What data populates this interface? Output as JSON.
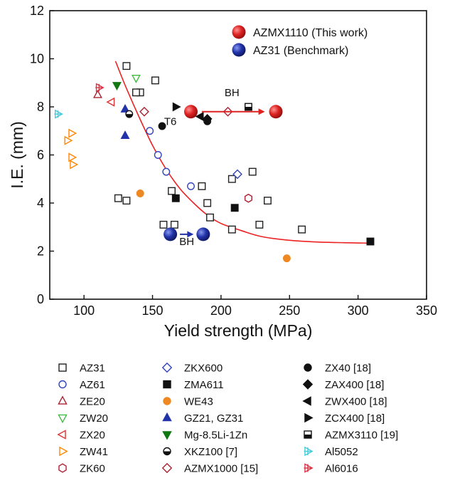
{
  "chart_data": {
    "type": "scatter",
    "xlabel": "Yield strength (MPa)",
    "ylabel": "I.E. (mm)",
    "xlim": [
      75,
      350
    ],
    "ylim": [
      0,
      12
    ],
    "xticks": [
      100,
      150,
      200,
      250,
      300,
      350
    ],
    "yticks": [
      0,
      2,
      4,
      6,
      8,
      10,
      12
    ],
    "grid": false,
    "series": [
      {
        "name": "AZ31",
        "marker": "square-open",
        "color": "#222222",
        "points": [
          [
            131,
            9.7
          ],
          [
            141,
            8.6
          ],
          [
            138,
            8.6
          ],
          [
            125,
            4.2
          ],
          [
            131,
            4.1
          ],
          [
            152,
            9.1
          ],
          [
            158,
            3.1
          ],
          [
            166,
            3.1
          ],
          [
            164,
            4.5
          ],
          [
            186,
            4.7
          ],
          [
            190,
            4.0
          ],
          [
            192,
            3.4
          ],
          [
            208,
            2.9
          ],
          [
            208,
            5.0
          ],
          [
            223,
            5.3
          ],
          [
            228,
            3.1
          ],
          [
            234,
            4.1
          ],
          [
            259,
            2.9
          ]
        ]
      },
      {
        "name": "AZ61",
        "marker": "circle-open",
        "color": "#3344bb",
        "points": [
          [
            148,
            7.0
          ],
          [
            154,
            6.0
          ],
          [
            160,
            5.3
          ],
          [
            178,
            4.7
          ]
        ]
      },
      {
        "name": "ZE20",
        "marker": "triangle-up-open",
        "color": "#aa2233",
        "points": [
          [
            110,
            8.5
          ]
        ]
      },
      {
        "name": "ZW20",
        "marker": "triangle-down-open",
        "color": "#44bb44",
        "points": [
          [
            138,
            9.2
          ]
        ]
      },
      {
        "name": "ZX20",
        "marker": "triangle-left-open",
        "color": "#dd3333",
        "points": [
          [
            120,
            8.2
          ]
        ]
      },
      {
        "name": "ZW41",
        "marker": "triangle-right-open",
        "color": "#ff8800",
        "points": [
          [
            91,
            6.9
          ],
          [
            88,
            6.6
          ],
          [
            91,
            5.9
          ],
          [
            92,
            5.6
          ]
        ]
      },
      {
        "name": "ZK60",
        "marker": "hexagon-open",
        "color": "#aa2233",
        "points": [
          [
            220,
            4.2
          ]
        ]
      },
      {
        "name": "ZKX600",
        "marker": "diamond-open",
        "color": "#3344bb",
        "points": [
          [
            212,
            5.2
          ]
        ]
      },
      {
        "name": "ZMA611",
        "marker": "square-filled",
        "color": "#111111",
        "points": [
          [
            167,
            4.2
          ],
          [
            210,
            3.8
          ],
          [
            309,
            2.4
          ]
        ]
      },
      {
        "name": "WE43",
        "marker": "circle-filled",
        "color": "#ee8822",
        "points": [
          [
            141,
            4.4
          ],
          [
            248,
            1.7
          ]
        ]
      },
      {
        "name": "GZ21, GZ31",
        "marker": "triangle-up-filled",
        "color": "#2233aa",
        "points": [
          [
            130,
            7.9
          ],
          [
            130,
            6.8
          ]
        ]
      },
      {
        "name": "Mg-8.5Li-1Zn",
        "marker": "triangle-down-filled",
        "color": "#117711",
        "points": [
          [
            124,
            8.9
          ]
        ]
      },
      {
        "name": "XKZ100 [7]",
        "marker": "circle-half",
        "color": "#111111",
        "points": [
          [
            133,
            7.7
          ],
          [
            190,
            7.4
          ]
        ]
      },
      {
        "name": "AZMX1000 [15]",
        "marker": "diamond-open",
        "color": "#aa2233",
        "points": [
          [
            144,
            7.8
          ],
          [
            205,
            7.8
          ]
        ]
      },
      {
        "name": "ZX40 [18]",
        "marker": "circle-filled",
        "color": "#111111",
        "points": [
          [
            157,
            7.2
          ]
        ]
      },
      {
        "name": "ZAX400 [18]",
        "marker": "diamond-filled",
        "color": "#111111",
        "points": [
          [
            190,
            7.5
          ]
        ]
      },
      {
        "name": "ZWX400 [18]",
        "marker": "triangle-left-filled",
        "color": "#111111",
        "points": [
          [
            185,
            7.6
          ]
        ]
      },
      {
        "name": "ZCX400  [18]",
        "marker": "triangle-right-filled",
        "color": "#111111",
        "points": [
          [
            167,
            8.0
          ]
        ]
      },
      {
        "name": "AZMX3110 [19]",
        "marker": "square-half",
        "color": "#111111",
        "points": [
          [
            220,
            8.0
          ]
        ]
      },
      {
        "name": "Al5052",
        "marker": "star-open",
        "color": "#44ccdd",
        "points": [
          [
            81,
            7.7
          ]
        ]
      },
      {
        "name": "Al6016",
        "marker": "star-open",
        "color": "#dd3344",
        "points": [
          [
            111,
            8.8
          ]
        ]
      },
      {
        "name": "AZMX1110 (This work)",
        "marker": "ball",
        "color": "#dd2222",
        "points": [
          [
            178,
            7.8
          ],
          [
            240,
            7.8
          ]
        ]
      },
      {
        "name": "AZ31 (Benchmark)",
        "marker": "ball",
        "color": "#2233aa",
        "points": [
          [
            163,
            2.7
          ],
          [
            187,
            2.7
          ]
        ]
      }
    ],
    "fit_curve": {
      "color": "#ee2222",
      "points": [
        [
          123,
          9.9
        ],
        [
          130,
          8.9
        ],
        [
          140,
          7.6
        ],
        [
          150,
          6.4
        ],
        [
          160,
          5.4
        ],
        [
          170,
          4.6
        ],
        [
          180,
          4.0
        ],
        [
          190,
          3.5
        ],
        [
          200,
          3.15
        ],
        [
          215,
          2.85
        ],
        [
          230,
          2.6
        ],
        [
          250,
          2.45
        ],
        [
          270,
          2.38
        ],
        [
          290,
          2.35
        ],
        [
          309,
          2.33
        ]
      ]
    },
    "arrows": [
      {
        "color": "#dd2222",
        "from": [
          186,
          7.8
        ],
        "to": [
          232,
          7.8
        ]
      },
      {
        "color": "#2233aa",
        "from": [
          170,
          2.7
        ],
        "to": [
          180,
          2.7
        ]
      }
    ],
    "annotations": [
      {
        "text": "T6",
        "x": 163,
        "y": 7.25
      },
      {
        "text": "BH",
        "x": 208,
        "y": 8.45
      },
      {
        "text": "BH",
        "x": 175,
        "y": 2.25
      }
    ],
    "top_legend": [
      {
        "label": "AZMX1110 (This work)",
        "color": "#dd2222"
      },
      {
        "label": "AZ31 (Benchmark)",
        "color": "#2233aa"
      }
    ],
    "bottom_legend_columns": [
      [
        "AZ31",
        "AZ61",
        "ZE20",
        "ZW20",
        "ZX20",
        "ZW41",
        "ZK60"
      ],
      [
        "ZKX600",
        "ZMA611",
        "WE43",
        "GZ21, GZ31",
        "Mg-8.5Li-1Zn",
        "XKZ100 [7]",
        "AZMX1000 [15]"
      ],
      [
        "ZX40 [18]",
        "ZAX400 [18]",
        "ZWX400 [18]",
        "ZCX400  [18]",
        "AZMX3110 [19]",
        "Al5052",
        "Al6016"
      ]
    ]
  }
}
